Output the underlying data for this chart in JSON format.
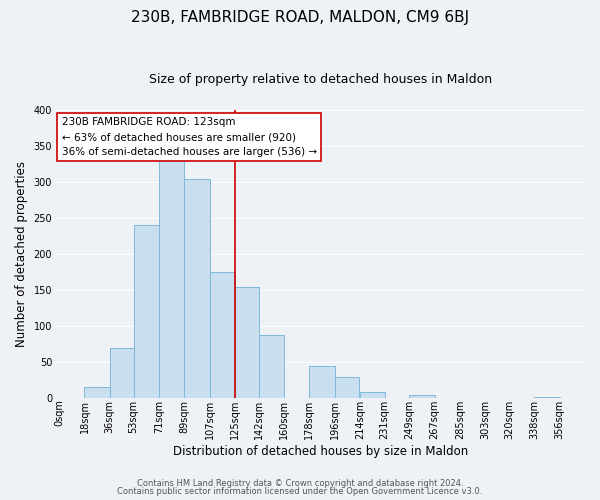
{
  "title": "230B, FAMBRIDGE ROAD, MALDON, CM9 6BJ",
  "subtitle": "Size of property relative to detached houses in Maldon",
  "xlabel": "Distribution of detached houses by size in Maldon",
  "ylabel": "Number of detached properties",
  "bar_left_edges": [
    0,
    18,
    36,
    53,
    71,
    89,
    107,
    125,
    142,
    160,
    178,
    196,
    214,
    231,
    249,
    267,
    285,
    303,
    320,
    338
  ],
  "bar_heights": [
    0,
    15,
    70,
    240,
    335,
    305,
    175,
    155,
    88,
    0,
    45,
    30,
    8,
    0,
    5,
    0,
    0,
    0,
    0,
    2
  ],
  "bar_widths": [
    18,
    18,
    17,
    18,
    18,
    18,
    18,
    17,
    18,
    18,
    18,
    17,
    18,
    18,
    18,
    18,
    18,
    17,
    18,
    18
  ],
  "bar_color": "#c9dff0",
  "bar_edgecolor": "#7fb8d8",
  "vline_x": 125,
  "vline_color": "#cc0000",
  "ylim": [
    0,
    400
  ],
  "yticks": [
    0,
    50,
    100,
    150,
    200,
    250,
    300,
    350,
    400
  ],
  "xtick_labels": [
    "0sqm",
    "18sqm",
    "36sqm",
    "53sqm",
    "71sqm",
    "89sqm",
    "107sqm",
    "125sqm",
    "142sqm",
    "160sqm",
    "178sqm",
    "196sqm",
    "214sqm",
    "231sqm",
    "249sqm",
    "267sqm",
    "285sqm",
    "303sqm",
    "320sqm",
    "338sqm",
    "356sqm"
  ],
  "xtick_positions": [
    0,
    18,
    36,
    53,
    71,
    89,
    107,
    125,
    142,
    160,
    178,
    196,
    214,
    231,
    249,
    267,
    285,
    303,
    320,
    338,
    356
  ],
  "annotation_title": "230B FAMBRIDGE ROAD: 123sqm",
  "annotation_line1": "← 63% of detached houses are smaller (920)",
  "annotation_line2": "36% of semi-detached houses are larger (536) →",
  "footer1": "Contains HM Land Registry data © Crown copyright and database right 2024.",
  "footer2": "Contains public sector information licensed under the Open Government Licence v3.0.",
  "bg_color": "#eef2f7",
  "grid_color": "#ffffff",
  "title_fontsize": 11,
  "subtitle_fontsize": 9,
  "axis_label_fontsize": 8.5,
  "tick_fontsize": 7,
  "annotation_fontsize": 7.5,
  "footer_fontsize": 6
}
